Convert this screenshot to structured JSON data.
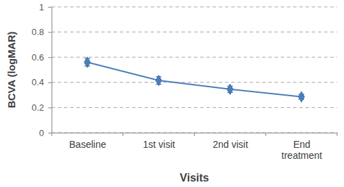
{
  "chart_data": {
    "type": "line",
    "x_label": "Visits",
    "y_label": "BCVA (logMAR)",
    "categories": [
      "Baseline",
      "1st visit",
      "2nd visit",
      "End treatment"
    ],
    "values": [
      0.56,
      0.415,
      0.345,
      0.285
    ],
    "errors": [
      0.03,
      0.03,
      0.025,
      0.02
    ],
    "color": "#4a7ebb",
    "marker": "diamond",
    "ylim": [
      0,
      1
    ],
    "yticks": [
      0,
      0.2,
      0.4,
      0.6,
      0.8,
      1
    ],
    "grid": true
  }
}
